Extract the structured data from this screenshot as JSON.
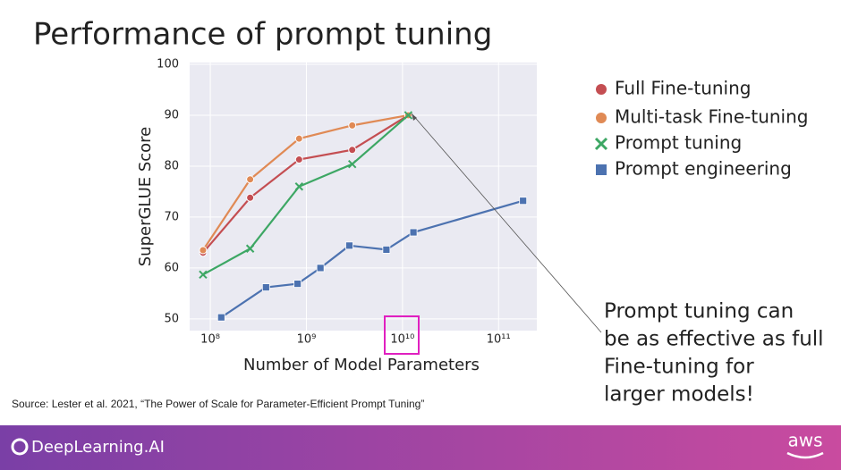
{
  "slide": {
    "title": "Performance of prompt tuning",
    "annotation_lines": [
      "Prompt tuning can",
      "be as effective as full",
      "Fine-tuning for",
      "larger models!"
    ],
    "source": "Source:  Lester et al. 2021, “The Power of Scale for Parameter-Efficient Prompt Tuning”",
    "brand": "DeepLearning.AI",
    "partner": "aws"
  },
  "chart_data": {
    "type": "line",
    "xscale": "log",
    "grid": true,
    "x_label": "Number of Model Parameters",
    "y_label": "SuperGLUE Score",
    "xlim": [
      61000000,
      250000000000
    ],
    "ylim": [
      47.7,
      100.35
    ],
    "xticks": [
      {
        "value": 100000000,
        "label": "10⁸"
      },
      {
        "value": 1000000000,
        "label": "10⁹"
      },
      {
        "value": 10000000000,
        "label": "10¹⁰"
      },
      {
        "value": 100000000000,
        "label": "10¹¹"
      }
    ],
    "yticks": [
      50,
      60,
      70,
      80,
      90,
      100
    ],
    "series": [
      {
        "name": "Full Fine-tuning",
        "color": "#c44e52",
        "marker": "circle",
        "x": [
          84000000,
          260000000,
          840000000,
          3000000000,
          11500000000
        ],
        "values": [
          63,
          73.8,
          81.3,
          83.2,
          90
        ]
      },
      {
        "name": "Multi-task Fine-tuning",
        "color": "#e08a55",
        "marker": "circle",
        "x": [
          84000000,
          260000000,
          840000000,
          3000000000,
          11500000000
        ],
        "values": [
          63.5,
          77.4,
          85.4,
          88,
          90
        ]
      },
      {
        "name": "Prompt tuning",
        "color": "#3da764",
        "marker": "x",
        "x": [
          84000000,
          260000000,
          840000000,
          3000000000,
          11500000000
        ],
        "values": [
          58.7,
          63.8,
          76,
          80.4,
          90
        ]
      },
      {
        "name": "Prompt engineering",
        "color": "#4c72b0",
        "marker": "square",
        "x": [
          130000000,
          380000000,
          810000000,
          1400000000,
          2800000000,
          6800000000,
          13000000000,
          180000000000
        ],
        "values": [
          50.3,
          56.2,
          56.9,
          60,
          64.4,
          63.6,
          67,
          73.2
        ]
      }
    ]
  }
}
